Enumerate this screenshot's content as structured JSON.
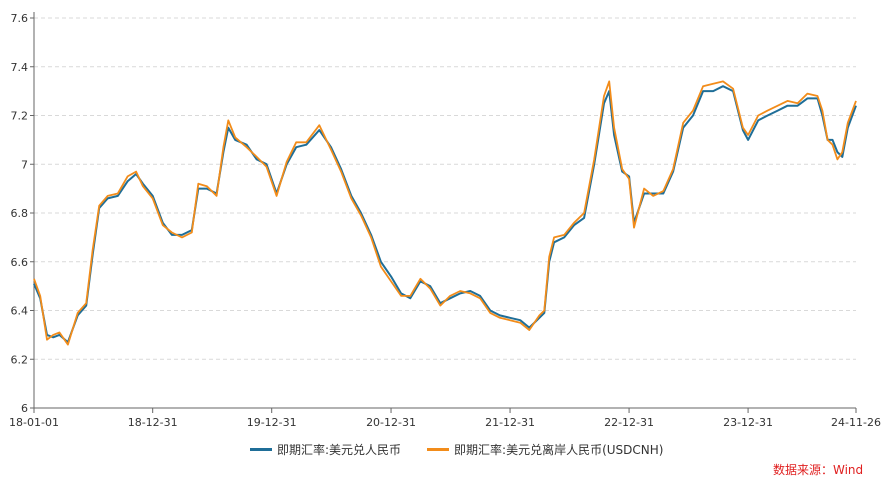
{
  "chart_data": {
    "type": "line",
    "xlabel": "",
    "ylabel": "",
    "ylim": [
      6,
      7.6
    ],
    "y_ticks": [
      6,
      6.2,
      6.4,
      6.6,
      6.8,
      7,
      7.2,
      7.4,
      7.6
    ],
    "y_tick_labels": [
      "6",
      "6.2",
      "6.4",
      "6.6",
      "6.8",
      "7",
      "7.2",
      "7.4",
      "7.6"
    ],
    "x_tick_labels": [
      "18-01-01",
      "18-12-31",
      "19-12-31",
      "20-12-31",
      "21-12-31",
      "22-12-31",
      "23-12-31",
      "24-11-26"
    ],
    "x_tick_dates": [
      "2018-01-01",
      "2018-12-31",
      "2019-12-31",
      "2020-12-31",
      "2021-12-31",
      "2022-12-31",
      "2023-12-31",
      "2024-11-26"
    ],
    "grid": "horizontal-dashed",
    "legend_position": "bottom",
    "series": [
      {
        "name": "即期汇率:美元兑人民币",
        "color": "#1f6e98",
        "x": [
          "2018-01-01",
          "2018-01-20",
          "2018-02-10",
          "2018-03-01",
          "2018-03-20",
          "2018-04-15",
          "2018-05-15",
          "2018-06-10",
          "2018-06-30",
          "2018-07-20",
          "2018-08-15",
          "2018-09-15",
          "2018-10-15",
          "2018-11-10",
          "2018-12-01",
          "2018-12-31",
          "2019-01-31",
          "2019-02-28",
          "2019-03-31",
          "2019-04-30",
          "2019-05-20",
          "2019-06-15",
          "2019-07-15",
          "2019-08-05",
          "2019-08-20",
          "2019-09-10",
          "2019-10-15",
          "2019-11-15",
          "2019-12-15",
          "2020-01-15",
          "2020-02-15",
          "2020-03-15",
          "2020-04-15",
          "2020-05-25",
          "2020-06-30",
          "2020-07-31",
          "2020-08-31",
          "2020-09-30",
          "2020-10-31",
          "2020-11-30",
          "2020-12-31",
          "2021-01-31",
          "2021-02-28",
          "2021-03-31",
          "2021-04-30",
          "2021-05-31",
          "2021-06-30",
          "2021-07-31",
          "2021-08-31",
          "2021-09-30",
          "2021-10-31",
          "2021-11-30",
          "2021-12-31",
          "2022-01-31",
          "2022-02-28",
          "2022-03-31",
          "2022-04-15",
          "2022-04-30",
          "2022-05-15",
          "2022-06-15",
          "2022-07-15",
          "2022-08-15",
          "2022-09-15",
          "2022-10-15",
          "2022-10-31",
          "2022-11-15",
          "2022-12-10",
          "2022-12-31",
          "2023-01-15",
          "2023-02-15",
          "2023-03-15",
          "2023-04-15",
          "2023-05-15",
          "2023-06-15",
          "2023-07-15",
          "2023-08-15",
          "2023-09-15",
          "2023-10-15",
          "2023-11-15",
          "2023-12-15",
          "2023-12-31",
          "2024-01-31",
          "2024-02-29",
          "2024-03-31",
          "2024-04-30",
          "2024-05-31",
          "2024-06-30",
          "2024-07-31",
          "2024-08-15",
          "2024-08-31",
          "2024-09-15",
          "2024-09-30",
          "2024-10-15",
          "2024-11-01",
          "2024-11-26"
        ],
        "y": [
          6.51,
          6.45,
          6.3,
          6.29,
          6.3,
          6.27,
          6.38,
          6.42,
          6.63,
          6.82,
          6.86,
          6.87,
          6.93,
          6.96,
          6.92,
          6.87,
          6.76,
          6.71,
          6.71,
          6.73,
          6.9,
          6.9,
          6.88,
          7.05,
          7.15,
          7.1,
          7.08,
          7.02,
          7.0,
          6.88,
          7.0,
          7.07,
          7.08,
          7.14,
          7.07,
          6.98,
          6.87,
          6.8,
          6.71,
          6.6,
          6.54,
          6.47,
          6.45,
          6.52,
          6.5,
          6.43,
          6.45,
          6.47,
          6.48,
          6.46,
          6.4,
          6.38,
          6.37,
          6.36,
          6.33,
          6.37,
          6.39,
          6.6,
          6.68,
          6.7,
          6.75,
          6.78,
          7.0,
          7.25,
          7.3,
          7.12,
          6.97,
          6.95,
          6.76,
          6.88,
          6.88,
          6.88,
          6.97,
          7.15,
          7.2,
          7.3,
          7.3,
          7.32,
          7.3,
          7.14,
          7.1,
          7.18,
          7.2,
          7.22,
          7.24,
          7.24,
          7.27,
          7.27,
          7.2,
          7.1,
          7.1,
          7.05,
          7.03,
          7.15,
          7.24
        ]
      },
      {
        "name": "即期汇率:美元兑离岸人民币(USDCNH)",
        "color": "#f28c1a",
        "x": [
          "2018-01-01",
          "2018-01-20",
          "2018-02-10",
          "2018-03-01",
          "2018-03-20",
          "2018-04-15",
          "2018-05-15",
          "2018-06-10",
          "2018-06-30",
          "2018-07-20",
          "2018-08-15",
          "2018-09-15",
          "2018-10-15",
          "2018-11-10",
          "2018-12-01",
          "2018-12-31",
          "2019-01-31",
          "2019-02-28",
          "2019-03-31",
          "2019-04-30",
          "2019-05-20",
          "2019-06-15",
          "2019-07-15",
          "2019-08-05",
          "2019-08-20",
          "2019-09-10",
          "2019-10-15",
          "2019-11-15",
          "2019-12-15",
          "2020-01-15",
          "2020-02-15",
          "2020-03-15",
          "2020-04-15",
          "2020-05-25",
          "2020-06-30",
          "2020-07-31",
          "2020-08-31",
          "2020-09-30",
          "2020-10-31",
          "2020-11-30",
          "2020-12-31",
          "2021-01-31",
          "2021-02-28",
          "2021-03-31",
          "2021-04-30",
          "2021-05-31",
          "2021-06-30",
          "2021-07-31",
          "2021-08-31",
          "2021-09-30",
          "2021-10-31",
          "2021-11-30",
          "2021-12-31",
          "2022-01-31",
          "2022-02-28",
          "2022-03-31",
          "2022-04-15",
          "2022-04-30",
          "2022-05-15",
          "2022-06-15",
          "2022-07-15",
          "2022-08-15",
          "2022-09-15",
          "2022-10-15",
          "2022-10-31",
          "2022-11-15",
          "2022-12-10",
          "2022-12-31",
          "2023-01-15",
          "2023-02-15",
          "2023-03-15",
          "2023-04-15",
          "2023-05-15",
          "2023-06-15",
          "2023-07-15",
          "2023-08-15",
          "2023-09-15",
          "2023-10-15",
          "2023-11-15",
          "2023-12-15",
          "2023-12-31",
          "2024-01-31",
          "2024-02-29",
          "2024-03-31",
          "2024-04-30",
          "2024-05-31",
          "2024-06-30",
          "2024-07-31",
          "2024-08-15",
          "2024-08-31",
          "2024-09-15",
          "2024-09-30",
          "2024-10-15",
          "2024-11-01",
          "2024-11-26"
        ],
        "y": [
          6.53,
          6.46,
          6.28,
          6.3,
          6.31,
          6.26,
          6.39,
          6.43,
          6.65,
          6.83,
          6.87,
          6.88,
          6.95,
          6.97,
          6.91,
          6.86,
          6.75,
          6.72,
          6.7,
          6.72,
          6.92,
          6.91,
          6.87,
          7.07,
          7.18,
          7.11,
          7.07,
          7.03,
          6.99,
          6.87,
          7.01,
          7.09,
          7.09,
          7.16,
          7.06,
          6.97,
          6.86,
          6.79,
          6.7,
          6.58,
          6.52,
          6.46,
          6.46,
          6.53,
          6.49,
          6.42,
          6.46,
          6.48,
          6.47,
          6.45,
          6.39,
          6.37,
          6.36,
          6.35,
          6.32,
          6.38,
          6.4,
          6.62,
          6.7,
          6.71,
          6.76,
          6.8,
          7.02,
          7.28,
          7.34,
          7.15,
          6.98,
          6.94,
          6.74,
          6.9,
          6.87,
          6.89,
          6.98,
          7.17,
          7.22,
          7.32,
          7.33,
          7.34,
          7.31,
          7.15,
          7.12,
          7.2,
          7.22,
          7.24,
          7.26,
          7.25,
          7.29,
          7.28,
          7.22,
          7.1,
          7.08,
          7.02,
          7.05,
          7.17,
          7.26
        ]
      }
    ]
  },
  "source_label": "数据来源：Wind"
}
